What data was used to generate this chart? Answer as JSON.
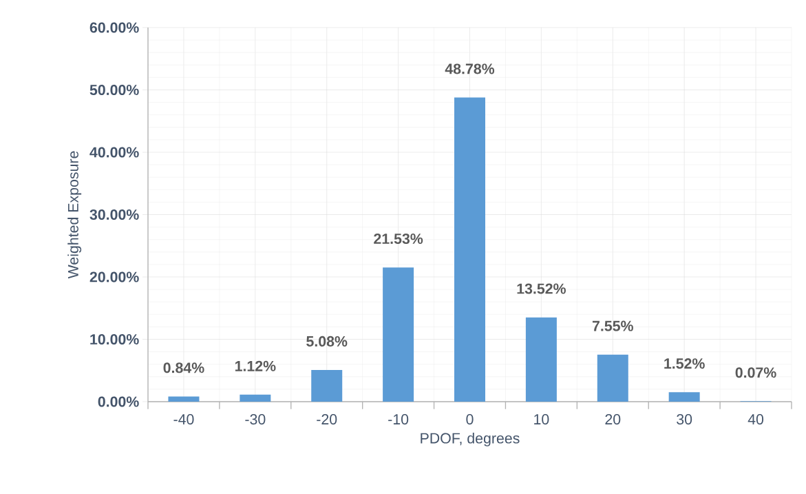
{
  "chart_data": {
    "type": "bar",
    "xlabel": "PDOF, degrees",
    "ylabel": "Weighted Exposure",
    "categories": [
      "-40",
      "-30",
      "-20",
      "-10",
      "0",
      "10",
      "20",
      "30",
      "40"
    ],
    "values": [
      0.84,
      1.12,
      5.08,
      21.53,
      48.78,
      13.52,
      7.55,
      1.52,
      0.07
    ],
    "value_labels": [
      "0.84%",
      "1.12%",
      "5.08%",
      "21.53%",
      "48.78%",
      "13.52%",
      "7.55%",
      "1.52%",
      "0.07%"
    ],
    "color": "#5b9bd5",
    "ylim": [
      0,
      60
    ],
    "yticks": [
      {
        "value": 0,
        "label": "0.00%"
      },
      {
        "value": 10,
        "label": "10.00%"
      },
      {
        "value": 20,
        "label": "20.00%"
      },
      {
        "value": 30,
        "label": "30.00%"
      },
      {
        "value": 40,
        "label": "40.00%"
      },
      {
        "value": 50,
        "label": "50.00%"
      },
      {
        "value": 60,
        "label": "60.00%"
      }
    ],
    "grid": true
  }
}
